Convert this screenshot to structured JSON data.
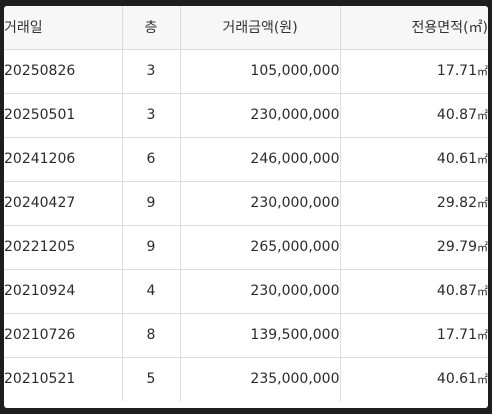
{
  "table": {
    "headers": {
      "date": "거래일",
      "floor": "층",
      "price": "거래금액(원)",
      "area": "전용면적(㎡)"
    },
    "rows": [
      {
        "date": "20250826",
        "floor": "3",
        "price": "105,000,000",
        "area": "17.71",
        "unit": "㎡"
      },
      {
        "date": "20250501",
        "floor": "3",
        "price": "230,000,000",
        "area": "40.87",
        "unit": "㎡"
      },
      {
        "date": "20241206",
        "floor": "6",
        "price": "246,000,000",
        "area": "40.61",
        "unit": "㎡"
      },
      {
        "date": "20240427",
        "floor": "9",
        "price": "230,000,000",
        "area": "29.82",
        "unit": "㎡"
      },
      {
        "date": "20221205",
        "floor": "9",
        "price": "265,000,000",
        "area": "29.79",
        "unit": "㎡"
      },
      {
        "date": "20210924",
        "floor": "4",
        "price": "230,000,000",
        "area": "40.87",
        "unit": "㎡"
      },
      {
        "date": "20210726",
        "floor": "8",
        "price": "139,500,000",
        "area": "17.71",
        "unit": "㎡"
      },
      {
        "date": "20210521",
        "floor": "5",
        "price": "235,000,000",
        "area": "40.61",
        "unit": "㎡"
      }
    ]
  }
}
